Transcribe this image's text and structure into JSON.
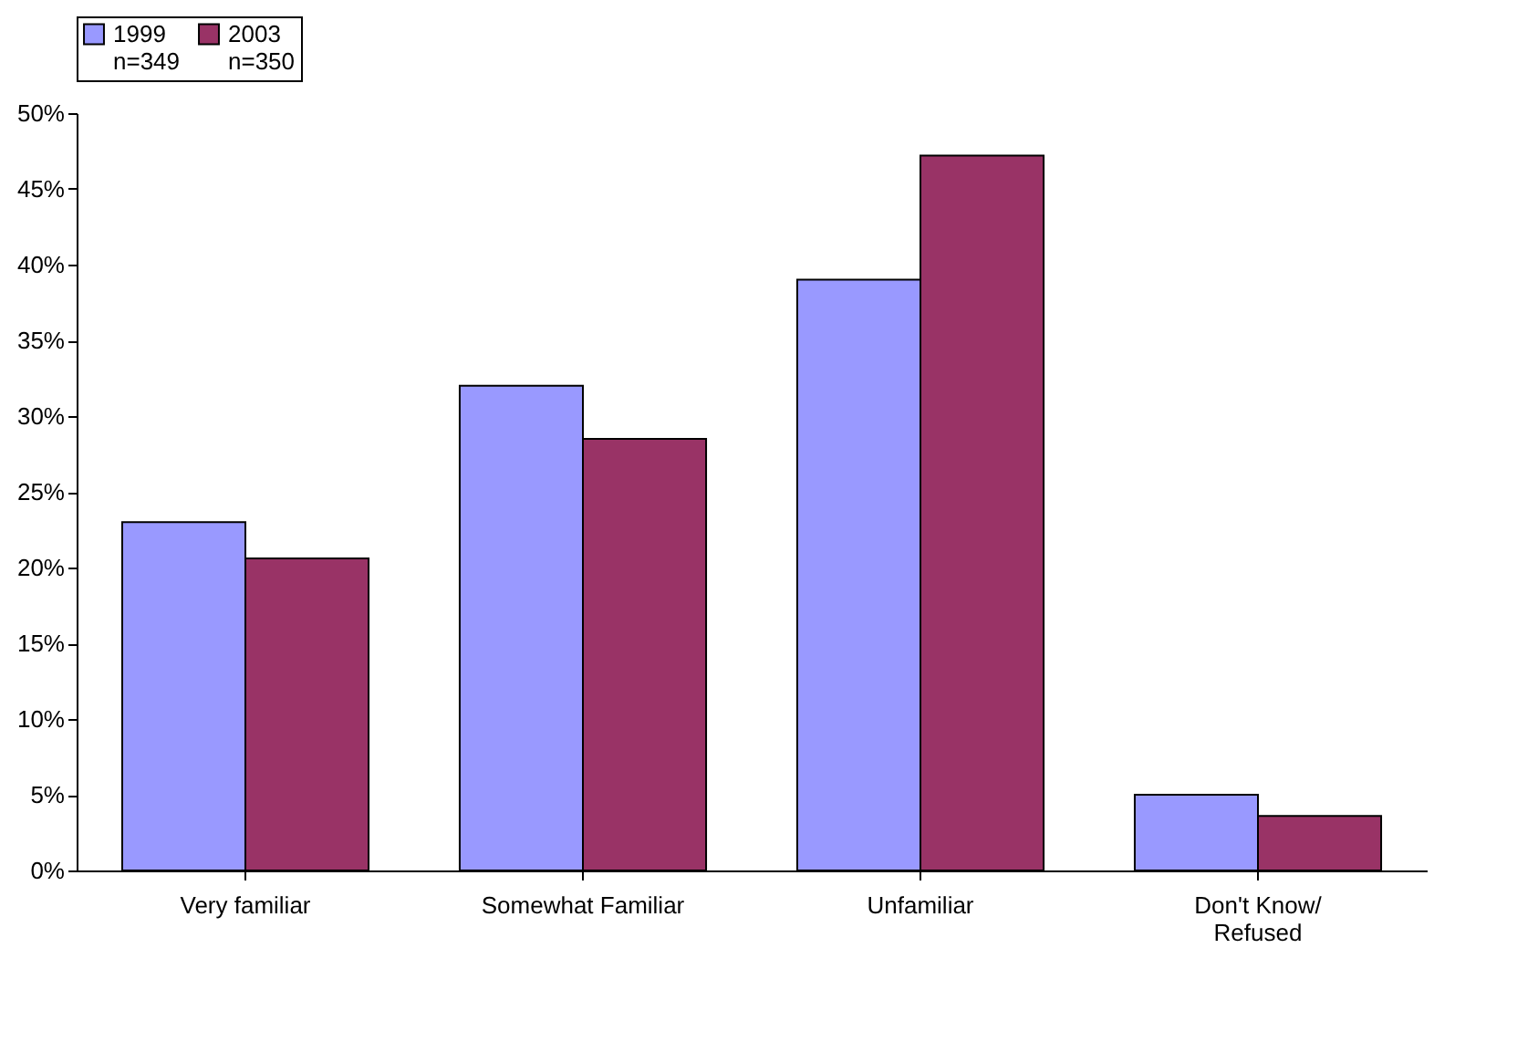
{
  "chart_data": {
    "type": "bar",
    "categories": [
      "Very familiar",
      "Somewhat Familiar",
      "Unfamiliar",
      "Don't Know/\nRefused"
    ],
    "series": [
      {
        "name": "1999\nn=349",
        "color": "#9999ff",
        "values": [
          23,
          32,
          39,
          5
        ]
      },
      {
        "name": "2003\nn=350",
        "color": "#993366",
        "values": [
          20.6,
          28.5,
          47.2,
          3.6
        ]
      }
    ],
    "ylim": [
      0,
      50
    ],
    "yticks": [
      {
        "value": 0,
        "label": "0%"
      },
      {
        "value": 5,
        "label": "5%"
      },
      {
        "value": 10,
        "label": "10%"
      },
      {
        "value": 15,
        "label": "15%"
      },
      {
        "value": 20,
        "label": "20%"
      },
      {
        "value": 25,
        "label": "25%"
      },
      {
        "value": 30,
        "label": "30%"
      },
      {
        "value": 35,
        "label": "35%"
      },
      {
        "value": 40,
        "label": "40%"
      },
      {
        "value": 45,
        "label": "45%"
      },
      {
        "value": 50,
        "label": "50%"
      }
    ],
    "grid": false,
    "legend": "top"
  }
}
